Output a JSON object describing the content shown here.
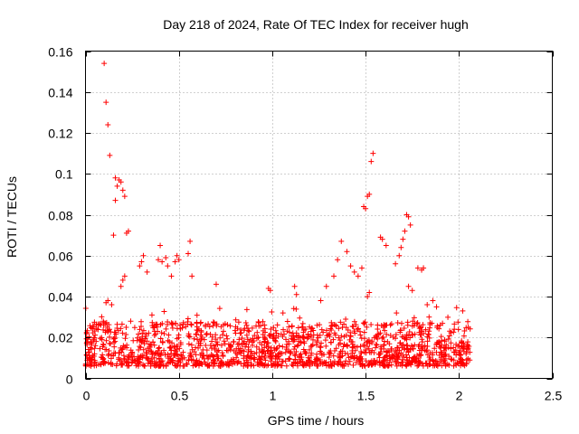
{
  "chart_data": {
    "type": "scatter",
    "title": "Day 218 of 2024, Rate Of TEC Index for receiver hugh",
    "xlabel": "GPS time / hours",
    "ylabel": "ROTI / TECUs",
    "xlim": [
      0,
      2.5
    ],
    "ylim": [
      0,
      0.16
    ],
    "x_ticks": [
      "0",
      "0.5",
      "1",
      "1.5",
      "2",
      "2.5"
    ],
    "y_ticks": [
      "0",
      "0.02",
      "0.04",
      "0.06",
      "0.08",
      "0.1",
      "0.12",
      "0.14",
      "0.16"
    ],
    "grid": true,
    "marker": "+",
    "series": [
      {
        "name": "ROTI",
        "color": "#ff0000",
        "points": [
          [
            0.1,
            0.154
          ],
          [
            0.11,
            0.135
          ],
          [
            0.12,
            0.124
          ],
          [
            0.13,
            0.109
          ],
          [
            0.16,
            0.098
          ],
          [
            0.17,
            0.094
          ],
          [
            0.18,
            0.097
          ],
          [
            0.19,
            0.096
          ],
          [
            0.2,
            0.092
          ],
          [
            0.21,
            0.089
          ],
          [
            0.16,
            0.087
          ],
          [
            0.15,
            0.07
          ],
          [
            0.22,
            0.071
          ],
          [
            0.23,
            0.072
          ],
          [
            0.19,
            0.045
          ],
          [
            0.2,
            0.048
          ],
          [
            0.21,
            0.05
          ],
          [
            0.11,
            0.037
          ],
          [
            0.12,
            0.038
          ],
          [
            0.14,
            0.036
          ],
          [
            0.3,
            0.057
          ],
          [
            0.31,
            0.06
          ],
          [
            0.29,
            0.055
          ],
          [
            0.33,
            0.052
          ],
          [
            0.39,
            0.058
          ],
          [
            0.4,
            0.065
          ],
          [
            0.41,
            0.057
          ],
          [
            0.43,
            0.059
          ],
          [
            0.44,
            0.055
          ],
          [
            0.46,
            0.05
          ],
          [
            0.48,
            0.057
          ],
          [
            0.49,
            0.06
          ],
          [
            0.5,
            0.058
          ],
          [
            0.55,
            0.061
          ],
          [
            0.56,
            0.067
          ],
          [
            0.57,
            0.05
          ],
          [
            0.7,
            0.046
          ],
          [
            0.98,
            0.044
          ],
          [
            0.99,
            0.043
          ],
          [
            1.12,
            0.045
          ],
          [
            1.13,
            0.041
          ],
          [
            1.26,
            0.038
          ],
          [
            1.29,
            0.045
          ],
          [
            1.33,
            0.05
          ],
          [
            1.35,
            0.058
          ],
          [
            1.37,
            0.067
          ],
          [
            1.4,
            0.062
          ],
          [
            1.42,
            0.055
          ],
          [
            1.44,
            0.052
          ],
          [
            1.46,
            0.05
          ],
          [
            1.48,
            0.054
          ],
          [
            1.49,
            0.084
          ],
          [
            1.5,
            0.083
          ],
          [
            1.51,
            0.089
          ],
          [
            1.52,
            0.09
          ],
          [
            1.53,
            0.106
          ],
          [
            1.54,
            0.11
          ],
          [
            1.51,
            0.04
          ],
          [
            1.52,
            0.042
          ],
          [
            1.58,
            0.069
          ],
          [
            1.59,
            0.068
          ],
          [
            1.61,
            0.065
          ],
          [
            1.66,
            0.056
          ],
          [
            1.68,
            0.06
          ],
          [
            1.69,
            0.064
          ],
          [
            1.7,
            0.068
          ],
          [
            1.71,
            0.072
          ],
          [
            1.72,
            0.08
          ],
          [
            1.73,
            0.079
          ],
          [
            1.74,
            0.075
          ],
          [
            1.73,
            0.045
          ],
          [
            1.75,
            0.043
          ],
          [
            1.78,
            0.054
          ],
          [
            1.8,
            0.053
          ],
          [
            1.81,
            0.054
          ],
          [
            1.83,
            0.036
          ],
          [
            1.84,
            0.03
          ],
          [
            1.86,
            0.038
          ],
          [
            1.88,
            0.035
          ],
          [
            2.02,
            0.033
          ],
          [
            2.05,
            0.025
          ]
        ],
        "dense_band": {
          "x_range": [
            0.0,
            2.06
          ],
          "y_range": [
            0.005,
            0.035
          ]
        }
      }
    ]
  }
}
